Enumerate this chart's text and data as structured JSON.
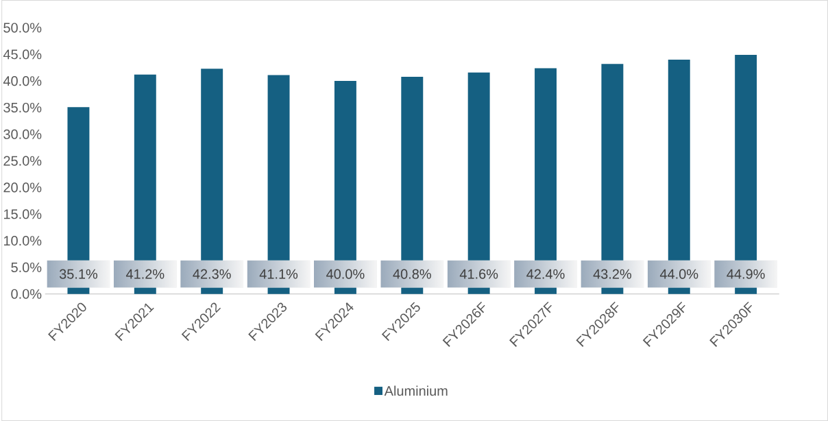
{
  "chart_data": {
    "type": "bar",
    "categories": [
      "FY2020",
      "FY2021",
      "FY2022",
      "FY2023",
      "FY2024",
      "FY2025",
      "FY2026F",
      "FY2027F",
      "FY2028F",
      "FY2029F",
      "FY2030F"
    ],
    "series": [
      {
        "name": "Aluminium",
        "color": "#156082",
        "values": [
          35.1,
          41.2,
          42.3,
          41.1,
          40.0,
          40.8,
          41.6,
          42.4,
          43.2,
          44.0,
          44.9
        ],
        "value_labels": [
          "35.1%",
          "41.2%",
          "42.3%",
          "41.1%",
          "40.0%",
          "40.8%",
          "41.6%",
          "42.4%",
          "43.2%",
          "44.0%",
          "44.9%"
        ]
      }
    ],
    "ylim": [
      0,
      50
    ],
    "yticks": [
      {
        "value": 0,
        "label": "0.0%"
      },
      {
        "value": 5,
        "label": "5.0%"
      },
      {
        "value": 10,
        "label": "10.0%"
      },
      {
        "value": 15,
        "label": "15.0%"
      },
      {
        "value": 20,
        "label": "20.0%"
      },
      {
        "value": 25,
        "label": "25.0%"
      },
      {
        "value": 30,
        "label": "30.0%"
      },
      {
        "value": 35,
        "label": "35.0%"
      },
      {
        "value": 40,
        "label": "40.0%"
      },
      {
        "value": 45,
        "label": "45.0%"
      },
      {
        "value": 50,
        "label": "50.0%"
      }
    ],
    "legend": "bottom"
  }
}
